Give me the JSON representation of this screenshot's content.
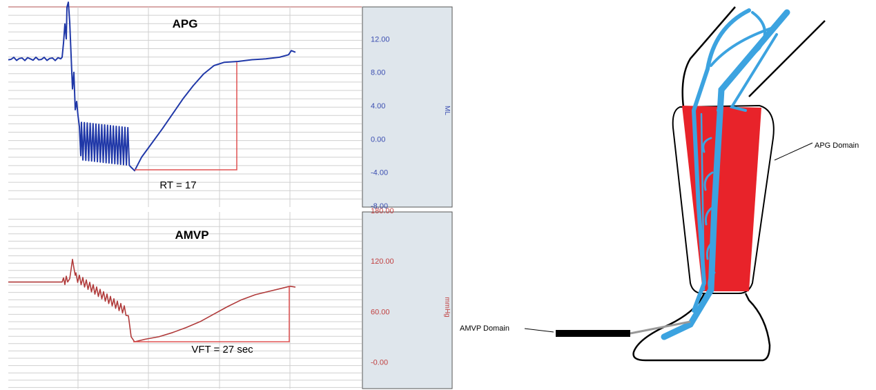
{
  "chart_data": [
    {
      "type": "line",
      "title": "APG",
      "ylabel": "ML",
      "ylim": [
        -8,
        16
      ],
      "yticks": [
        "12.00",
        "8.00",
        "4.00",
        "0.00",
        "-4.00",
        "-8.00"
      ],
      "grid": true,
      "annotation": "RT = 17",
      "color": "#2038a8",
      "axis_color": "#3a4db0"
    },
    {
      "type": "line",
      "title": "AMVP",
      "ylabel": "mmHg",
      "ylim": [
        -30,
        180
      ],
      "yticks": [
        "180.00",
        "120.00",
        "60.00",
        "-0.00"
      ],
      "grid": true,
      "annotation": "VFT = 27 sec",
      "color": "#b03a3a",
      "axis_color": "#c04040"
    }
  ],
  "diagram": {
    "labels": {
      "apg_domain": "APG Domain",
      "amvp_domain": "AMVP Domain"
    },
    "colors": {
      "domain_fill": "#e8232a",
      "vein": "#3ca3e0",
      "probe": "#000000"
    }
  }
}
